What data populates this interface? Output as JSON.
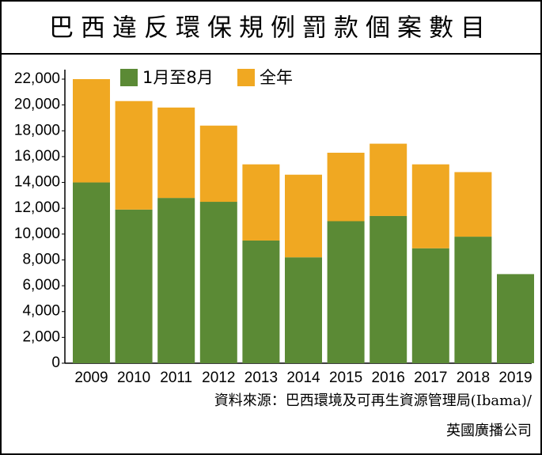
{
  "chart_data": {
    "type": "stacked_bar",
    "title": "巴西違反環保規例罰款個案數目",
    "categories": [
      "2009",
      "2010",
      "2011",
      "2012",
      "2013",
      "2014",
      "2015",
      "2016",
      "2017",
      "2018",
      "2019"
    ],
    "series": [
      {
        "name": "1月至8月",
        "color": "#5b8a35",
        "values": [
          14000,
          11900,
          12800,
          12500,
          9500,
          8200,
          11000,
          11400,
          8900,
          9800,
          6900
        ]
      },
      {
        "name": "全年",
        "color": "#f0a822",
        "values": [
          8000,
          8400,
          7000,
          5900,
          5900,
          6400,
          5300,
          5600,
          6500,
          5000,
          null
        ]
      }
    ],
    "ylim": [
      0,
      22000
    ],
    "yticks": [
      0,
      {
        "value": 2000,
        "label": "2,000"
      },
      {
        "value": 4000,
        "label": "4,000"
      },
      {
        "value": 6000,
        "label": "6,000"
      },
      {
        "value": 8000,
        "label": "8,000"
      },
      {
        "value": 10000,
        "label": "10,000"
      },
      {
        "value": 12000,
        "label": "12,000"
      },
      {
        "value": 14000,
        "label": "14,000"
      },
      {
        "value": 16000,
        "label": "16,000"
      },
      {
        "value": 18000,
        "label": "18,000"
      },
      {
        "value": 20000,
        "label": "20,000"
      },
      {
        "value": 22000,
        "label": "22,000"
      }
    ],
    "legend": "top",
    "source": [
      "資料來源：巴西環境及可再生資源管理局(Ibama)/",
      "英國廣播公司"
    ]
  }
}
